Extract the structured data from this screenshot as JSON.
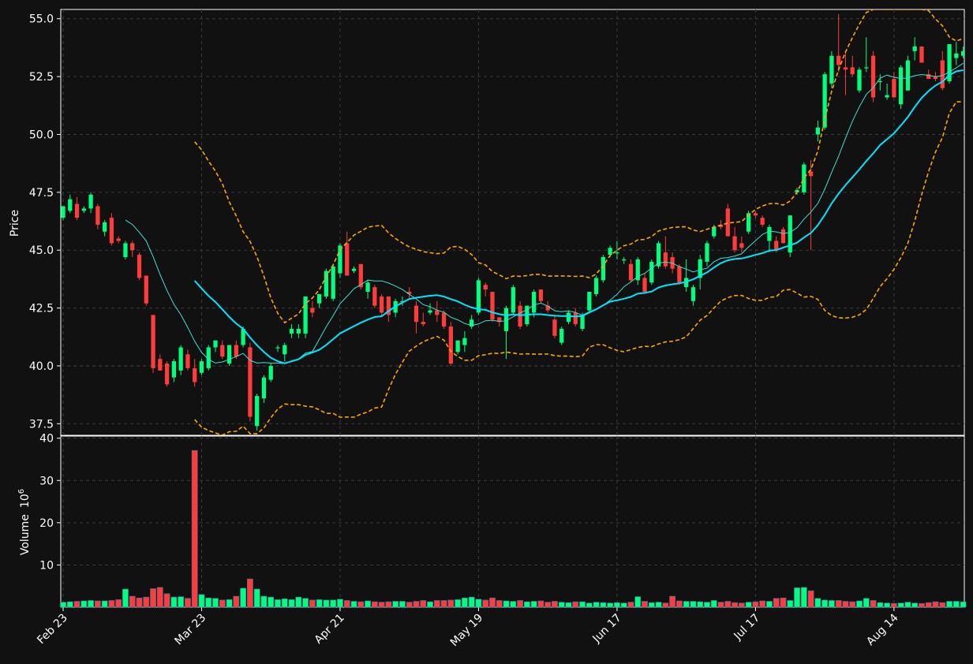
{
  "chart_data": {
    "type": "candlestick",
    "theme": {
      "background": "#111111",
      "up_color": "#00ff7f",
      "down_color": "#ff3c3c",
      "ma_fast_color": "#40e0d0",
      "ma_slow_color": "#00e5ff",
      "band_color": "#ffa500",
      "grid_color": "#3a3a3a"
    },
    "price_axis": {
      "label": "Price",
      "ylim": [
        37.0,
        55.4
      ],
      "ticks": [
        "37.5",
        "40.0",
        "42.5",
        "45.0",
        "47.5",
        "50.0",
        "52.5",
        "55.0"
      ]
    },
    "volume_axis": {
      "label": "Volume",
      "label_exponent": "10",
      "label_power": "6",
      "ylim": [
        0,
        40.5
      ],
      "ticks": [
        "10",
        "20",
        "30",
        "40"
      ]
    },
    "x_ticks": [
      {
        "index": 0,
        "label": "Feb 23"
      },
      {
        "index": 20,
        "label": "Mar 23"
      },
      {
        "index": 40,
        "label": "Apr 21"
      },
      {
        "index": 60,
        "label": "May 19"
      },
      {
        "index": 80,
        "label": "Jun 17"
      },
      {
        "index": 100,
        "label": "Jul 17"
      },
      {
        "index": 120,
        "label": "Aug 14"
      }
    ],
    "indicators": {
      "ma_fast_window": 10,
      "ma_slow_window": 20,
      "bollinger_std": 2
    },
    "ohlcv": [
      [
        46.4,
        46.9,
        46.3,
        46.9,
        1.2
      ],
      [
        46.7,
        47.4,
        46.6,
        47.2,
        1.3
      ],
      [
        47.0,
        47.3,
        46.3,
        46.4,
        1.4
      ],
      [
        46.7,
        46.9,
        46.6,
        46.8,
        1.5
      ],
      [
        46.8,
        47.5,
        46.6,
        47.4,
        1.6
      ],
      [
        46.9,
        47.0,
        45.9,
        46.1,
        1.5
      ],
      [
        45.8,
        46.3,
        45.6,
        46.2,
        1.5
      ],
      [
        46.4,
        46.6,
        45.2,
        45.3,
        1.6
      ],
      [
        45.5,
        45.6,
        45.3,
        45.4,
        1.8
      ],
      [
        44.7,
        45.4,
        44.6,
        45.3,
        4.3
      ],
      [
        45.3,
        45.4,
        44.7,
        45.0,
        2.6
      ],
      [
        44.8,
        44.9,
        43.7,
        43.8,
        2.2
      ],
      [
        43.9,
        43.9,
        42.6,
        42.7,
        2.4
      ],
      [
        42.2,
        42.2,
        39.7,
        39.9,
        4.4
      ],
      [
        40.3,
        40.5,
        39.8,
        39.8,
        4.7
      ],
      [
        40.1,
        40.2,
        39.1,
        39.2,
        3.2
      ],
      [
        39.5,
        40.3,
        39.3,
        40.2,
        2.4
      ],
      [
        39.8,
        40.9,
        39.6,
        40.8,
        2.5
      ],
      [
        40.5,
        40.7,
        39.8,
        39.9,
        2.1
      ],
      [
        39.9,
        40.3,
        39.1,
        39.3,
        37.1
      ],
      [
        39.7,
        40.3,
        39.6,
        40.2,
        3.0
      ],
      [
        39.9,
        40.9,
        39.8,
        40.8,
        2.2
      ],
      [
        40.8,
        41.1,
        40.6,
        41.1,
        2.1
      ],
      [
        40.9,
        41.1,
        40.3,
        40.4,
        1.7
      ],
      [
        40.1,
        40.9,
        40.0,
        40.9,
        1.8
      ],
      [
        40.9,
        41.1,
        40.3,
        40.4,
        2.6
      ],
      [
        40.9,
        41.7,
        40.8,
        41.6,
        4.5
      ],
      [
        40.8,
        41.0,
        37.6,
        37.8,
        6.7
      ],
      [
        37.4,
        38.8,
        37.2,
        38.7,
        4.3
      ],
      [
        38.6,
        39.6,
        38.4,
        39.5,
        2.6
      ],
      [
        39.4,
        40.1,
        39.3,
        40.0,
        2.4
      ],
      [
        40.8,
        40.9,
        40.6,
        40.8,
        1.8
      ],
      [
        40.5,
        41.0,
        40.2,
        40.9,
        2.0
      ],
      [
        41.4,
        41.8,
        41.2,
        41.6,
        1.8
      ],
      [
        41.4,
        41.8,
        41.2,
        41.6,
        2.4
      ],
      [
        41.4,
        43.0,
        41.2,
        43.0,
        2.1
      ],
      [
        42.5,
        42.8,
        42.1,
        42.3,
        1.7
      ],
      [
        42.7,
        43.1,
        42.5,
        43.1,
        1.8
      ],
      [
        43.0,
        44.2,
        42.9,
        44.1,
        1.7
      ],
      [
        42.9,
        44.4,
        42.8,
        44.3,
        1.7
      ],
      [
        44.0,
        45.3,
        43.8,
        45.2,
        1.9
      ],
      [
        45.3,
        45.8,
        43.9,
        43.9,
        1.6
      ],
      [
        44.1,
        44.3,
        44.0,
        44.2,
        1.4
      ],
      [
        44.4,
        44.4,
        43.3,
        43.4,
        1.3
      ],
      [
        43.2,
        43.7,
        42.9,
        43.6,
        1.5
      ],
      [
        43.4,
        43.5,
        42.5,
        42.6,
        1.3
      ],
      [
        43.0,
        43.1,
        42.1,
        42.3,
        1.2
      ],
      [
        43.0,
        43.0,
        41.9,
        42.2,
        1.3
      ],
      [
        42.3,
        42.9,
        42.1,
        42.8,
        1.4
      ],
      [
        42.8,
        43.0,
        42.6,
        42.8,
        1.4
      ],
      [
        43.2,
        43.4,
        42.9,
        43.1,
        1.2
      ],
      [
        42.6,
        42.8,
        41.4,
        41.9,
        1.4
      ],
      [
        41.9,
        42.3,
        41.7,
        41.8,
        1.6
      ],
      [
        42.3,
        42.7,
        42.2,
        42.4,
        1.3
      ],
      [
        42.4,
        42.8,
        41.9,
        42.2,
        1.6
      ],
      [
        42.3,
        42.4,
        41.6,
        41.7,
        1.6
      ],
      [
        41.7,
        41.9,
        40.0,
        40.1,
        1.7
      ],
      [
        40.6,
        41.1,
        40.5,
        41.1,
        1.8
      ],
      [
        40.9,
        41.5,
        40.6,
        41.2,
        2.2
      ],
      [
        41.7,
        42.2,
        41.6,
        42.0,
        2.4
      ],
      [
        42.3,
        43.8,
        42.2,
        43.7,
        1.9
      ],
      [
        43.5,
        43.6,
        43.0,
        43.3,
        1.7
      ],
      [
        43.2,
        43.2,
        41.9,
        42.0,
        2.2
      ],
      [
        42.1,
        42.1,
        41.7,
        41.9,
        1.6
      ],
      [
        41.5,
        42.6,
        40.3,
        42.5,
        1.5
      ],
      [
        42.3,
        43.5,
        42.2,
        43.4,
        1.4
      ],
      [
        42.6,
        42.8,
        41.6,
        41.7,
        1.6
      ],
      [
        41.8,
        42.6,
        41.7,
        42.6,
        1.3
      ],
      [
        42.3,
        43.3,
        42.1,
        43.2,
        1.4
      ],
      [
        43.3,
        43.3,
        42.7,
        42.8,
        1.5
      ],
      [
        42.6,
        42.8,
        42.3,
        42.4,
        1.2
      ],
      [
        42.0,
        42.2,
        41.2,
        41.3,
        1.4
      ],
      [
        41.0,
        41.7,
        40.9,
        41.6,
        1.2
      ],
      [
        41.9,
        42.4,
        41.8,
        42.3,
        1.1
      ],
      [
        42.3,
        42.5,
        41.7,
        41.8,
        1.3
      ],
      [
        41.6,
        42.3,
        41.5,
        42.2,
        1.3
      ],
      [
        42.4,
        43.2,
        42.3,
        43.2,
        1.0
      ],
      [
        43.1,
        43.9,
        43.0,
        43.8,
        1.2
      ],
      [
        43.7,
        44.8,
        43.6,
        44.7,
        1.1
      ],
      [
        44.8,
        45.2,
        44.7,
        45.1,
        1.0
      ],
      [
        44.9,
        45.4,
        44.6,
        44.9,
        1.1
      ],
      [
        44.6,
        44.7,
        44.4,
        44.6,
        1.0
      ],
      [
        44.4,
        44.6,
        43.6,
        43.7,
        1.2
      ],
      [
        43.7,
        44.7,
        43.5,
        44.6,
        2.5
      ],
      [
        43.8,
        44.0,
        43.1,
        43.2,
        1.4
      ],
      [
        43.6,
        44.6,
        43.5,
        44.5,
        1.1
      ],
      [
        44.3,
        45.4,
        44.2,
        45.3,
        1.2
      ],
      [
        44.9,
        45.6,
        44.2,
        44.3,
        1.0
      ],
      [
        44.7,
        44.9,
        44.0,
        44.2,
        2.6
      ],
      [
        44.3,
        44.4,
        43.5,
        43.6,
        1.5
      ],
      [
        43.4,
        44.6,
        43.2,
        43.8,
        1.4
      ],
      [
        42.8,
        43.5,
        42.6,
        43.4,
        1.4
      ],
      [
        43.8,
        44.8,
        43.3,
        44.6,
        1.3
      ],
      [
        44.5,
        45.4,
        44.3,
        45.3,
        1.2
      ],
      [
        45.6,
        46.1,
        45.5,
        46.0,
        1.6
      ],
      [
        46.1,
        46.3,
        45.9,
        46.0,
        1.2
      ],
      [
        46.8,
        47.0,
        45.6,
        45.6,
        1.4
      ],
      [
        45.6,
        46.0,
        44.9,
        45.0,
        1.1
      ],
      [
        45.3,
        45.6,
        44.9,
        45.1,
        1.0
      ],
      [
        45.8,
        46.7,
        45.7,
        46.6,
        1.2
      ],
      [
        46.6,
        46.7,
        46.4,
        46.5,
        1.3
      ],
      [
        46.4,
        46.5,
        46.0,
        46.1,
        1.5
      ],
      [
        45.4,
        46.1,
        44.9,
        46.0,
        1.4
      ],
      [
        45.4,
        45.6,
        44.9,
        45.0,
        2.1
      ],
      [
        45.9,
        46.0,
        45.3,
        45.3,
        2.2
      ],
      [
        44.9,
        46.5,
        44.7,
        46.5,
        1.6
      ],
      [
        47.5,
        47.7,
        47.4,
        47.6,
        4.6
      ],
      [
        47.5,
        48.8,
        47.4,
        48.7,
        4.7
      ],
      [
        48.4,
        48.9,
        45.0,
        48.2,
        3.9
      ],
      [
        50.0,
        50.6,
        49.7,
        50.3,
        2.1
      ],
      [
        50.3,
        52.7,
        50.2,
        52.6,
        1.7
      ],
      [
        52.2,
        53.6,
        52.0,
        53.4,
        1.6
      ],
      [
        53.4,
        55.2,
        52.7,
        53.0,
        1.6
      ],
      [
        52.9,
        53.6,
        51.7,
        52.8,
        1.4
      ],
      [
        52.9,
        53.4,
        52.5,
        52.6,
        1.3
      ],
      [
        51.9,
        52.9,
        51.8,
        52.8,
        1.5
      ],
      [
        52.9,
        54.2,
        52.7,
        52.9,
        2.1
      ],
      [
        53.4,
        53.6,
        51.4,
        51.6,
        1.6
      ],
      [
        52.3,
        52.6,
        51.9,
        52.3,
        1.1
      ],
      [
        51.6,
        52.2,
        51.5,
        51.7,
        1.0
      ],
      [
        52.4,
        52.7,
        51.6,
        51.6,
        0.9
      ],
      [
        51.3,
        53.0,
        51.1,
        52.9,
        1.0
      ],
      [
        51.9,
        53.4,
        51.9,
        53.2,
        1.2
      ],
      [
        53.6,
        54.2,
        53.2,
        53.8,
        1.0
      ],
      [
        53.8,
        53.8,
        53.1,
        53.1,
        0.9
      ],
      [
        52.6,
        52.8,
        52.4,
        52.4,
        1.1
      ],
      [
        52.5,
        52.7,
        52.3,
        52.4,
        1.3
      ],
      [
        53.2,
        53.6,
        51.9,
        52.0,
        1.1
      ],
      [
        52.3,
        53.9,
        52.2,
        53.9,
        1.4
      ],
      [
        53.3,
        54.0,
        53.0,
        53.5,
        1.4
      ],
      [
        53.4,
        53.8,
        53.3,
        53.6,
        1.3
      ]
    ]
  }
}
